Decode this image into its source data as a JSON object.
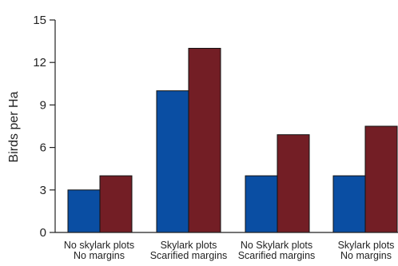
{
  "chart_data": {
    "type": "bar",
    "title": "",
    "xlabel": "",
    "ylabel": "Birds per Ha",
    "ylim": [
      0,
      15
    ],
    "yticks": [
      0,
      3,
      6,
      9,
      12,
      15
    ],
    "grid": false,
    "legend": "none",
    "categories": [
      [
        "No skylark plots",
        "No margins"
      ],
      [
        "Skylark plots",
        "Scarified margins"
      ],
      [
        "No Skylark plots",
        "Scarified margins"
      ],
      [
        "Skylark plots",
        "No margins"
      ]
    ],
    "series": [
      {
        "color": "#0a4ea3",
        "values": [
          3,
          10,
          4,
          4
        ]
      },
      {
        "color": "#731e25",
        "values": [
          4,
          13,
          6.9,
          7.5
        ]
      }
    ]
  }
}
